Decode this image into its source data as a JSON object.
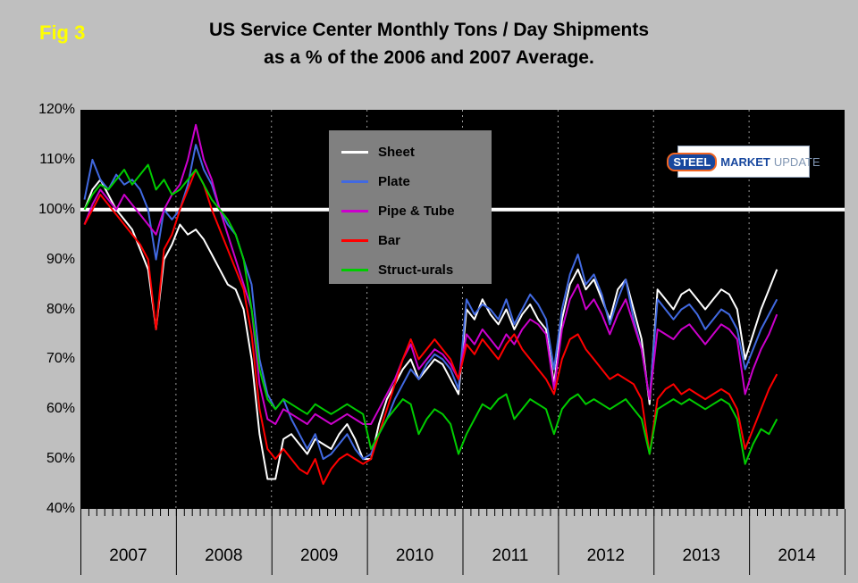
{
  "figure": {
    "fig_label": "Fig 3",
    "title_line1": "US Service Center Monthly Tons / Day Shipments",
    "title_line2": "as a % of the 2006 and 2007 Average."
  },
  "logo": {
    "steel": "STEEL",
    "market": "MARKET",
    "update": "UPDATE"
  },
  "colors": {
    "page_bg": "#bfbfbf",
    "plot_bg": "#000000",
    "fig_label": "#ffff00",
    "legend_bg": "#808080",
    "reference_line": "#ffffff",
    "year_gridline": "#9a9a9a"
  },
  "chart_data": {
    "type": "line",
    "title": "US Service Center Monthly Tons / Day Shipments as a % of the 2006 and 2007 Average.",
    "xlabel": "",
    "ylabel": "",
    "ylim": [
      40,
      120
    ],
    "ytick_values": [
      120,
      110,
      100,
      90,
      80,
      70,
      60,
      50,
      40
    ],
    "ytick_labels": [
      "120%",
      "110%",
      "100%",
      "90%",
      "80%",
      "70%",
      "60%",
      "50%",
      "40%"
    ],
    "x_tick_labels": [
      "2007",
      "2008",
      "2009",
      "2010",
      "2011",
      "2012",
      "2013",
      "2014"
    ],
    "x_minor_ticks": "monthly",
    "x_start_month": "2007-01",
    "x_end_month": "2014-04",
    "reference_line": 100,
    "grid": "vertical-dashed-at-year-boundaries",
    "legend_position": "top-center-inside-plot",
    "series": [
      {
        "name": "Sheet",
        "color": "#ffffff",
        "values": [
          100,
          104,
          106,
          103,
          100,
          98,
          96,
          92,
          88,
          76,
          90,
          93,
          97,
          95,
          96,
          94,
          91,
          88,
          85,
          84,
          80,
          70,
          55,
          46,
          46,
          54,
          55,
          53,
          51,
          54,
          53,
          52,
          55,
          57,
          54,
          50,
          50,
          57,
          62,
          65,
          68,
          70,
          66,
          68,
          70,
          69,
          66,
          63,
          80,
          78,
          82,
          79,
          77,
          80,
          76,
          79,
          81,
          78,
          76,
          65,
          78,
          85,
          88,
          84,
          86,
          82,
          78,
          84,
          86,
          80,
          74,
          61,
          84,
          82,
          80,
          83,
          84,
          82,
          80,
          82,
          84,
          83,
          80,
          70,
          75,
          80,
          84,
          88
        ]
      },
      {
        "name": "Plate",
        "color": "#4169e1",
        "values": [
          102,
          110,
          106,
          104,
          107,
          105,
          106,
          104,
          100,
          90,
          100,
          98,
          100,
          105,
          113,
          108,
          105,
          100,
          97,
          95,
          90,
          85,
          70,
          63,
          60,
          62,
          58,
          55,
          52,
          55,
          50,
          51,
          53,
          55,
          52,
          50,
          51,
          55,
          58,
          62,
          65,
          68,
          66,
          69,
          71,
          70,
          68,
          64,
          82,
          79,
          81,
          80,
          78,
          82,
          77,
          80,
          83,
          81,
          78,
          68,
          80,
          87,
          91,
          85,
          87,
          83,
          77,
          82,
          86,
          78,
          72,
          62,
          82,
          80,
          78,
          80,
          81,
          79,
          76,
          78,
          80,
          79,
          76,
          68,
          72,
          76,
          79,
          82
        ]
      },
      {
        "name": "Pipe & Tube",
        "color": "#cc00cc",
        "values": [
          97,
          101,
          104,
          102,
          100,
          103,
          101,
          99,
          97,
          95,
          100,
          103,
          105,
          110,
          117,
          110,
          106,
          100,
          95,
          90,
          85,
          80,
          65,
          58,
          57,
          60,
          59,
          58,
          57,
          59,
          58,
          57,
          58,
          59,
          58,
          57,
          57,
          60,
          63,
          66,
          70,
          73,
          68,
          70,
          72,
          71,
          69,
          66,
          75,
          73,
          76,
          74,
          72,
          75,
          73,
          76,
          78,
          77,
          75,
          64,
          76,
          82,
          85,
          80,
          82,
          79,
          75,
          79,
          82,
          77,
          72,
          62,
          76,
          75,
          74,
          76,
          77,
          75,
          73,
          75,
          77,
          76,
          74,
          63,
          68,
          72,
          75,
          79
        ]
      },
      {
        "name": "Bar",
        "color": "#ff0000",
        "values": [
          97,
          100,
          103,
          101,
          99,
          97,
          95,
          93,
          90,
          76,
          92,
          95,
          100,
          104,
          108,
          105,
          100,
          96,
          92,
          88,
          84,
          75,
          60,
          52,
          50,
          52,
          50,
          48,
          47,
          50,
          45,
          48,
          50,
          51,
          50,
          49,
          50,
          55,
          60,
          65,
          70,
          74,
          70,
          72,
          74,
          72,
          70,
          66,
          73,
          71,
          74,
          72,
          70,
          73,
          75,
          72,
          70,
          68,
          66,
          63,
          70,
          74,
          75,
          72,
          70,
          68,
          66,
          67,
          66,
          65,
          62,
          51,
          62,
          64,
          65,
          63,
          64,
          63,
          62,
          63,
          64,
          63,
          60,
          52,
          56,
          60,
          64,
          67
        ]
      },
      {
        "name": "Struct-urals",
        "color": "#00cc00",
        "values": [
          100,
          103,
          105,
          104,
          106,
          108,
          105,
          107,
          109,
          104,
          106,
          103,
          104,
          106,
          108,
          105,
          102,
          100,
          98,
          95,
          90,
          80,
          68,
          62,
          60,
          62,
          61,
          60,
          59,
          61,
          60,
          59,
          60,
          61,
          60,
          59,
          52,
          55,
          58,
          60,
          62,
          61,
          55,
          58,
          60,
          59,
          57,
          51,
          55,
          58,
          61,
          60,
          62,
          63,
          58,
          60,
          62,
          61,
          60,
          55,
          60,
          62,
          63,
          61,
          62,
          61,
          60,
          61,
          62,
          60,
          58,
          51,
          60,
          61,
          62,
          61,
          62,
          61,
          60,
          61,
          62,
          61,
          58,
          49,
          53,
          56,
          55,
          58
        ]
      }
    ]
  }
}
